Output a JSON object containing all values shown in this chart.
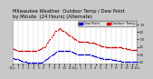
{
  "title": "Milwaukee Weather  Outdoor Temp / Dew Point\nby Minute  (24 Hours) (Alternate)",
  "bg_color": "#c8c8c8",
  "plot_bg": "#ffffff",
  "temp_color": "#cc0000",
  "dew_color": "#0000cc",
  "legend_temp_label": "Outdoor Temp",
  "legend_dew_label": "Dew Point",
  "ylim": [
    17,
    77
  ],
  "yticks": [
    20,
    30,
    40,
    50,
    60,
    70
  ],
  "grid_color": "#999999",
  "temp_data": [
    38,
    37,
    37,
    36,
    36,
    35,
    35,
    35,
    35,
    35,
    35,
    35,
    35,
    35,
    35,
    35,
    35,
    35,
    35,
    35,
    35,
    35,
    35,
    35,
    36,
    36,
    37,
    37,
    38,
    39,
    40,
    41,
    43,
    45,
    47,
    49,
    51,
    53,
    55,
    57,
    59,
    61,
    62,
    63,
    64,
    65,
    64,
    63,
    62,
    61,
    60,
    59,
    58,
    57,
    56,
    55,
    54,
    53,
    52,
    51,
    50,
    49,
    48,
    47,
    47,
    47,
    47,
    47,
    47,
    47,
    47,
    47,
    47,
    46,
    46,
    46,
    45,
    45,
    45,
    44,
    44,
    43,
    43,
    42,
    42,
    41,
    41,
    41,
    41,
    40,
    40,
    40,
    40,
    40,
    40,
    40,
    40,
    40,
    40,
    40,
    40,
    40,
    40,
    39,
    39,
    38,
    38,
    38,
    38,
    37,
    37,
    37,
    37,
    36,
    36,
    36,
    36,
    36,
    36,
    36
  ],
  "dew_data": [
    25,
    25,
    24,
    24,
    23,
    23,
    22,
    22,
    21,
    21,
    20,
    20,
    20,
    20,
    19,
    19,
    19,
    19,
    19,
    18,
    18,
    18,
    18,
    18,
    18,
    18,
    18,
    19,
    19,
    20,
    21,
    22,
    23,
    24,
    25,
    26,
    27,
    28,
    29,
    30,
    31,
    32,
    33,
    34,
    34,
    35,
    35,
    35,
    35,
    35,
    35,
    35,
    35,
    35,
    34,
    34,
    33,
    33,
    32,
    32,
    31,
    31,
    30,
    30,
    30,
    30,
    30,
    30,
    30,
    30,
    30,
    30,
    29,
    29,
    29,
    28,
    28,
    28,
    27,
    27,
    27,
    26,
    26,
    25,
    25,
    25,
    25,
    24,
    24,
    24,
    24,
    23,
    23,
    23,
    23,
    22,
    22,
    22,
    22,
    22,
    21,
    21,
    21,
    21,
    20,
    20,
    20,
    20,
    20,
    20,
    20,
    20,
    20,
    20,
    20,
    20,
    20,
    20,
    20,
    20
  ],
  "xtick_labels": [
    "12a",
    "1",
    "2",
    "3",
    "4",
    "5",
    "6",
    "7",
    "8",
    "9",
    "10",
    "11",
    "12p",
    "1",
    "2",
    "3",
    "4",
    "5",
    "6",
    "7",
    "8",
    "9",
    "10",
    "11",
    "12a"
  ],
  "title_fontsize": 3.8,
  "tick_fontsize": 3.0,
  "marker_size": 0.9
}
